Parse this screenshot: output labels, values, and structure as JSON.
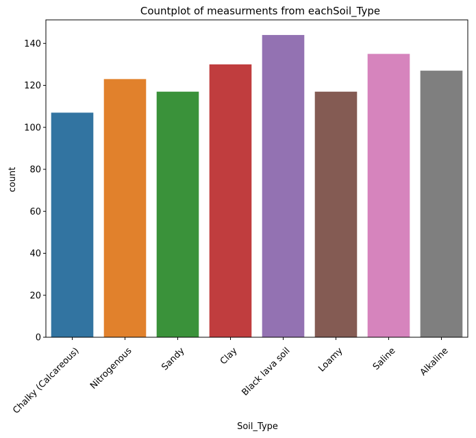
{
  "chart_data": {
    "type": "bar",
    "title": "Countplot of measurments from eachSoil_Type",
    "xlabel": "Soil_Type",
    "ylabel": "count",
    "categories": [
      "Chalky (Calcareous)",
      "Nitrogenous",
      "Sandy",
      "Clay",
      "Black lava soil",
      "Loamy",
      "Saline",
      "Alkaline"
    ],
    "values": [
      107,
      123,
      117,
      130,
      144,
      117,
      135,
      127
    ],
    "colors": [
      "#3274a1",
      "#e1812c",
      "#3a923a",
      "#c03d3e",
      "#9372b2",
      "#845b53",
      "#d684bd",
      "#7f7f7f"
    ],
    "ylim": [
      0,
      151.2
    ],
    "yticks": [
      0,
      20,
      40,
      60,
      80,
      100,
      120,
      140
    ],
    "grid": false,
    "legend": "none"
  }
}
